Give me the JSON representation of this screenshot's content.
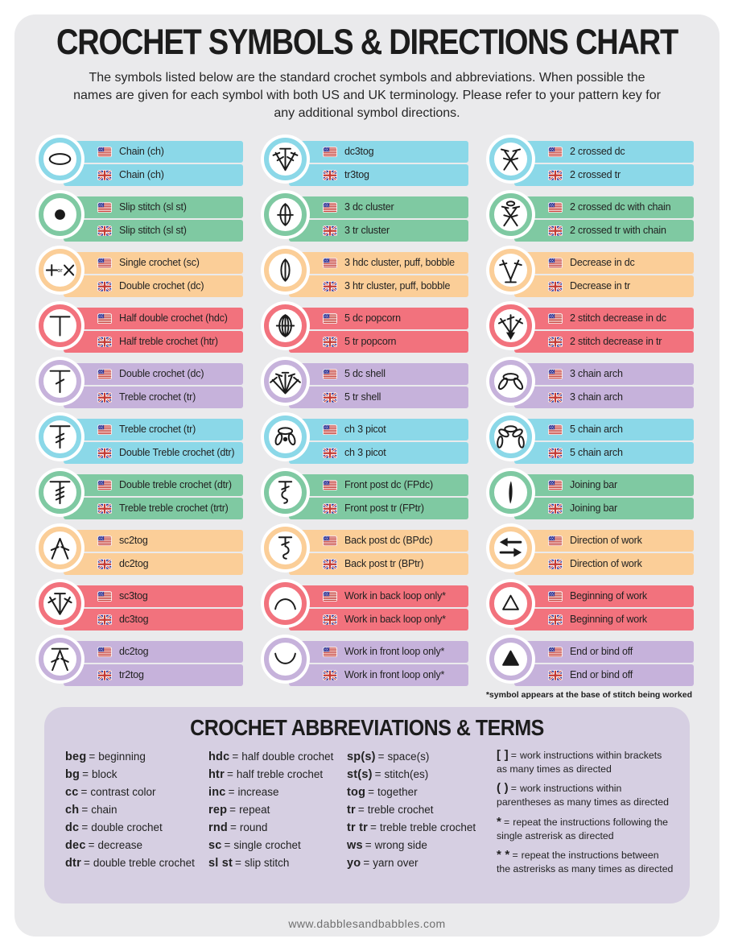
{
  "page": {
    "title": "CROCHET SYMBOLS & DIRECTIONS CHART",
    "intro": "The symbols listed below are the standard crochet symbols and abbreviations. When possible the names are given for each symbol with both US and UK terminology. Please refer to your pattern key for any additional symbol directions.",
    "footnote": "*symbol appears at the base of stitch being worked",
    "footer": "www.dabblesandbabbles.com"
  },
  "colors": {
    "blue": "#8BD8E8",
    "green": "#7FC9A2",
    "orange": "#FBCE98",
    "red": "#F2727D",
    "purple": "#C6B2DB",
    "panel": "#D6CFE2",
    "card": "#EAEAEC"
  },
  "symbol_entries": {
    "columns": [
      {
        "rows": [
          {
            "symbol": "chain-symbol",
            "color": "blue",
            "us": "Chain (ch)",
            "uk": "Chain (ch)"
          },
          {
            "symbol": "slip-stitch-symbol",
            "color": "green",
            "us": "Slip stitch (sl st)",
            "uk": "Slip stitch (sl st)"
          },
          {
            "symbol": "single-crochet-symbol",
            "color": "orange",
            "us": "Single crochet (sc)",
            "uk": "Double crochet (dc)"
          },
          {
            "symbol": "half-double-crochet-symbol",
            "color": "red",
            "us": "Half double crochet (hdc)",
            "uk": "Half treble crochet (htr)"
          },
          {
            "symbol": "double-crochet-symbol",
            "color": "purple",
            "us": "Double crochet (dc)",
            "uk": "Treble crochet (tr)"
          },
          {
            "symbol": "treble-crochet-symbol",
            "color": "blue",
            "us": "Treble crochet (tr)",
            "uk": "Double Treble crochet (dtr)"
          },
          {
            "symbol": "double-treble-crochet-symbol",
            "color": "green",
            "us": "Double treble crochet (dtr)",
            "uk": "Treble treble crochet (trtr)"
          },
          {
            "symbol": "sc2tog-symbol",
            "color": "orange",
            "us": "sc2tog",
            "uk": "dc2tog"
          },
          {
            "symbol": "sc3tog-symbol",
            "color": "red",
            "us": "sc3tog",
            "uk": "dc3tog"
          },
          {
            "symbol": "dc2tog-symbol",
            "color": "purple",
            "us": "dc2tog",
            "uk": "tr2tog"
          }
        ]
      },
      {
        "rows": [
          {
            "symbol": "dc3tog-symbol",
            "color": "blue",
            "us": "dc3tog",
            "uk": "tr3tog"
          },
          {
            "symbol": "3dc-cluster-symbol",
            "color": "green",
            "us": "3 dc cluster",
            "uk": "3 tr cluster"
          },
          {
            "symbol": "3hdc-cluster-symbol",
            "color": "orange",
            "us": "3 hdc cluster, puff, bobble",
            "uk": "3 htr cluster, puff, bobble"
          },
          {
            "symbol": "5dc-popcorn-symbol",
            "color": "red",
            "us": "5 dc popcorn",
            "uk": "5 tr popcorn"
          },
          {
            "symbol": "5dc-shell-symbol",
            "color": "purple",
            "us": "5 dc shell",
            "uk": "5 tr shell"
          },
          {
            "symbol": "ch3-picot-symbol",
            "color": "blue",
            "us": "ch 3 picot",
            "uk": "ch 3 picot"
          },
          {
            "symbol": "front-post-dc-symbol",
            "color": "green",
            "us": "Front post dc (FPdc)",
            "uk": "Front post tr (FPtr)"
          },
          {
            "symbol": "back-post-dc-symbol",
            "color": "orange",
            "us": "Back post dc (BPdc)",
            "uk": "Back post tr (BPtr)"
          },
          {
            "symbol": "back-loop-only-symbol",
            "color": "red",
            "us": "Work in back loop only*",
            "uk": "Work in back loop only*"
          },
          {
            "symbol": "front-loop-only-symbol",
            "color": "purple",
            "us": "Work in front loop only*",
            "uk": "Work in front loop only*"
          }
        ]
      },
      {
        "rows": [
          {
            "symbol": "2-crossed-dc-symbol",
            "color": "blue",
            "us": "2 crossed dc",
            "uk": "2 crossed tr"
          },
          {
            "symbol": "2-crossed-dc-with-chain-symbol",
            "color": "green",
            "us": "2 crossed dc with chain",
            "uk": "2 crossed tr with chain"
          },
          {
            "symbol": "decrease-in-dc-symbol",
            "color": "orange",
            "us": "Decrease in dc",
            "uk": "Decrease in tr"
          },
          {
            "symbol": "2-stitch-decrease-symbol",
            "color": "red",
            "us": "2 stitch decrease in dc",
            "uk": "2 stitch decrease in tr"
          },
          {
            "symbol": "3-chain-arch-symbol",
            "color": "purple",
            "us": "3 chain arch",
            "uk": "3 chain arch"
          },
          {
            "symbol": "5-chain-arch-symbol",
            "color": "blue",
            "us": "5 chain arch",
            "uk": "5 chain arch"
          },
          {
            "symbol": "joining-bar-symbol",
            "color": "green",
            "us": "Joining bar",
            "uk": "Joining bar"
          },
          {
            "symbol": "direction-of-work-symbol",
            "color": "orange",
            "us": "Direction of work",
            "uk": "Direction of work"
          },
          {
            "symbol": "beginning-of-work-symbol",
            "color": "red",
            "us": "Beginning of work",
            "uk": "Beginning of work"
          },
          {
            "symbol": "end-or-bind-off-symbol",
            "color": "purple",
            "us": "End or bind off",
            "uk": "End or bind off"
          }
        ]
      }
    ]
  },
  "abbreviations": {
    "title": "CROCHET ABBREVIATIONS & TERMS",
    "separator": "=",
    "columns": [
      [
        {
          "abbr": "beg",
          "def": "beginning"
        },
        {
          "abbr": "bg",
          "def": "block"
        },
        {
          "abbr": "cc",
          "def": "contrast color"
        },
        {
          "abbr": "ch",
          "def": "chain"
        },
        {
          "abbr": "dc",
          "def": "double crochet"
        },
        {
          "abbr": "dec",
          "def": "decrease"
        },
        {
          "abbr": "dtr",
          "def": "double treble crochet"
        }
      ],
      [
        {
          "abbr": "hdc",
          "def": "half double crochet"
        },
        {
          "abbr": "htr",
          "def": "half treble crochet"
        },
        {
          "abbr": "inc",
          "def": "increase"
        },
        {
          "abbr": "rep",
          "def": "repeat"
        },
        {
          "abbr": "rnd",
          "def": "round"
        },
        {
          "abbr": "sc",
          "def": "single crochet"
        },
        {
          "abbr": "sl st",
          "def": "slip stitch"
        }
      ],
      [
        {
          "abbr": "sp(s)",
          "def": "space(s)"
        },
        {
          "abbr": "st(s)",
          "def": "stitch(es)"
        },
        {
          "abbr": "tog",
          "def": "together"
        },
        {
          "abbr": "tr",
          "def": "treble crochet"
        },
        {
          "abbr": "tr tr",
          "def": "treble treble crochet"
        },
        {
          "abbr": "ws",
          "def": "wrong side"
        },
        {
          "abbr": "yo",
          "def": "yarn over"
        }
      ],
      [
        {
          "abbr": "[ ]",
          "def": "work instructions within brackets as many times as directed"
        },
        {
          "abbr": "( )",
          "def": "work instructions within parentheses as many times as directed"
        },
        {
          "abbr": "*",
          "def": "repeat the instructions following the single astrerisk as directed"
        },
        {
          "abbr": "* *",
          "def": "repeat the instructions between the astrerisks as many times as directed"
        }
      ]
    ]
  }
}
